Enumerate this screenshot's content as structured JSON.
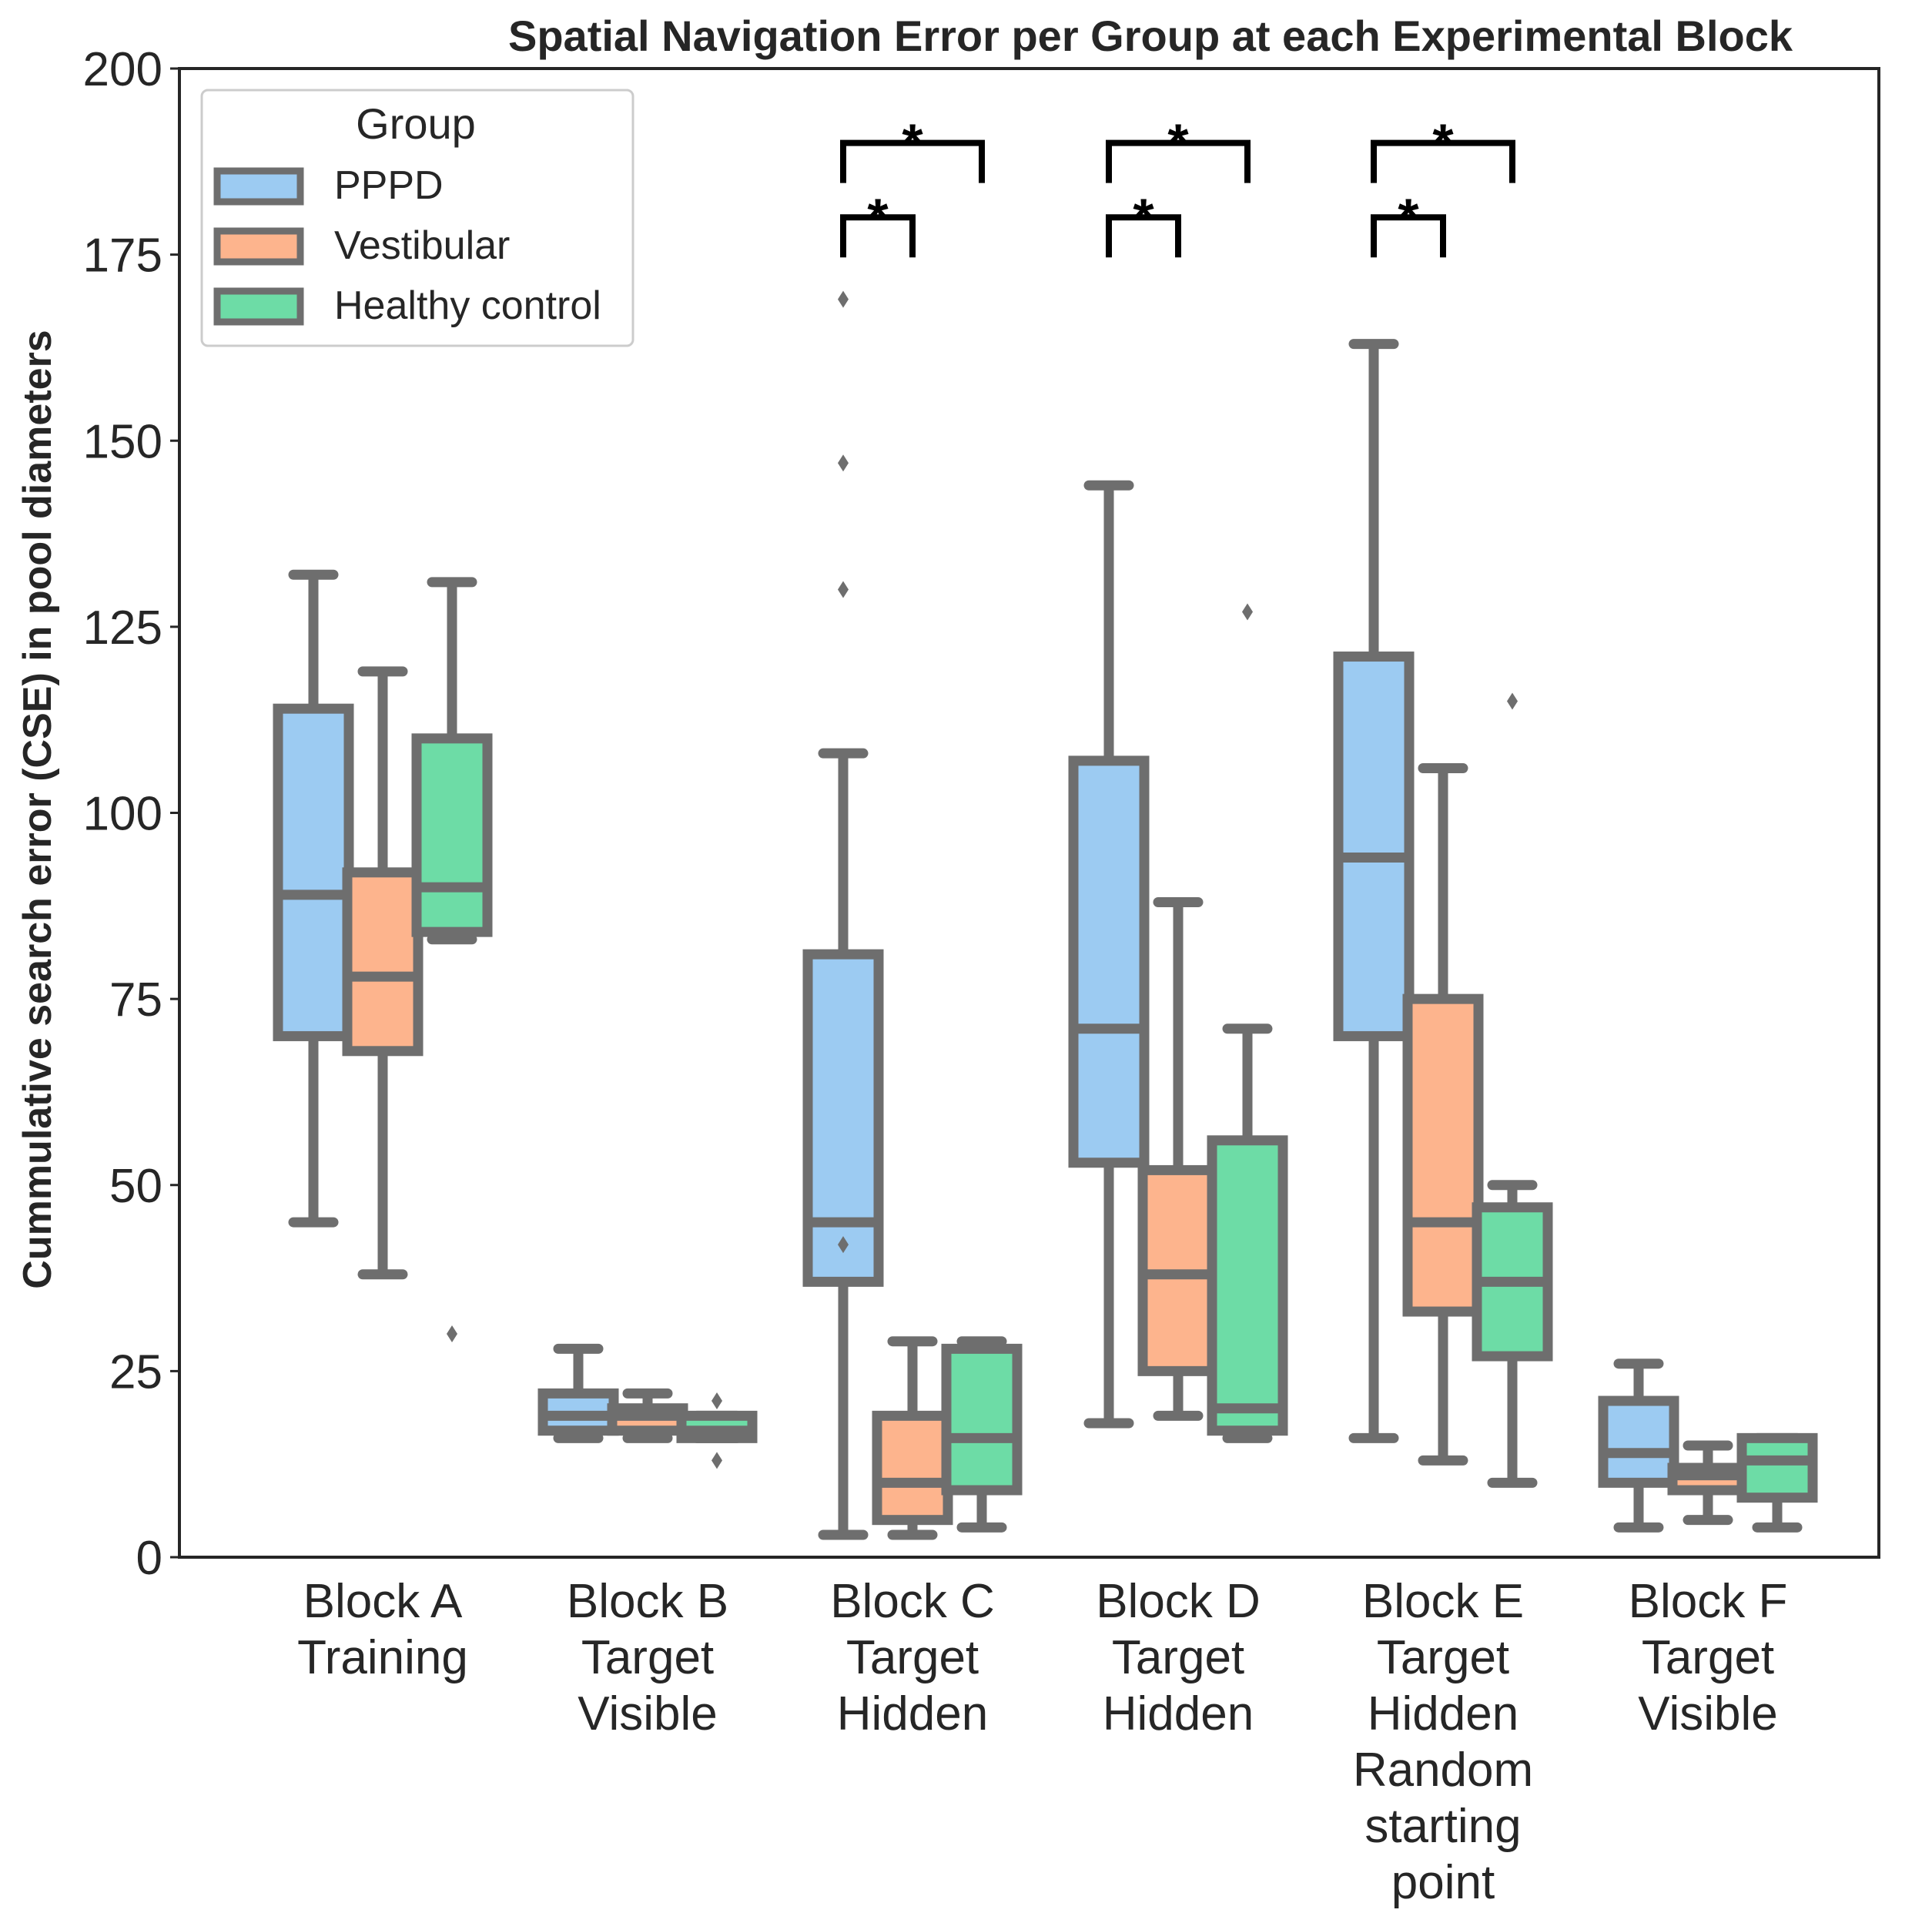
{
  "chart_data": {
    "type": "box",
    "title": "Spatial Navigation Error per Group at each Experimental Block",
    "xlabel": "",
    "ylabel": "Cummulative search error (CSE) in pool diameters",
    "ylim": [
      0,
      200
    ],
    "yticks": [
      0,
      25,
      50,
      75,
      100,
      125,
      150,
      175,
      200
    ],
    "grid": false,
    "legend": {
      "title": "Group",
      "position": "top-left"
    },
    "categories": [
      [
        "Block A",
        "Training"
      ],
      [
        "Block B",
        "Target",
        "Visible"
      ],
      [
        "Block C",
        "Target",
        "Hidden"
      ],
      [
        "Block D",
        "Target",
        "Hidden"
      ],
      [
        "Block E",
        "Target",
        "Hidden",
        "Random",
        "starting",
        "point"
      ],
      [
        "Block F",
        "Target",
        "Visible"
      ]
    ],
    "series": [
      {
        "name": "PPPD",
        "color": "#9ccbf2",
        "boxes": [
          {
            "whislo": 45,
            "q1": 70,
            "med": 89,
            "q3": 114,
            "whishi": 132,
            "fliers": []
          },
          {
            "whislo": 16,
            "q1": 17,
            "med": 19,
            "q3": 22,
            "whislo2": null,
            "whishi": 28,
            "fliers": []
          },
          {
            "whislo": 3,
            "q1": 37,
            "med": 45,
            "q3": 81,
            "whishi": 108,
            "fliers": [
              169,
              147,
              130,
              42
            ]
          },
          {
            "whislo": 18,
            "q1": 53,
            "med": 71,
            "q3": 107,
            "whishi": 144,
            "fliers": []
          },
          {
            "whislo": 16,
            "q1": 70,
            "med": 94,
            "q3": 121,
            "whishi": 163,
            "fliers": []
          },
          {
            "whislo": 4,
            "q1": 10,
            "med": 14,
            "q3": 21,
            "whishi": 26,
            "fliers": []
          }
        ]
      },
      {
        "name": "Vestibular",
        "color": "#fdb48d",
        "boxes": [
          {
            "whislo": 38,
            "q1": 68,
            "med": 78,
            "q3": 92,
            "whishi": 119,
            "fliers": []
          },
          {
            "whislo": 16,
            "q1": 17,
            "med": 19,
            "q3": 20,
            "whishi": 22,
            "fliers": []
          },
          {
            "whislo": 3,
            "q1": 5,
            "med": 10,
            "q3": 19,
            "whishi": 29,
            "fliers": []
          },
          {
            "whislo": 19,
            "q1": 25,
            "med": 38,
            "q3": 52,
            "whishi": 88,
            "fliers": []
          },
          {
            "whislo": 13,
            "q1": 33,
            "med": 45,
            "q3": 75,
            "whishi": 106,
            "fliers": []
          },
          {
            "whislo": 5,
            "q1": 9,
            "med": 11,
            "q3": 12,
            "whishi": 15,
            "fliers": []
          }
        ]
      },
      {
        "name": "Healthy control",
        "color": "#6ddca6",
        "boxes": [
          {
            "whislo": 83,
            "q1": 84,
            "med": 90,
            "q3": 110,
            "whishi": 131,
            "fliers": [
              30
            ]
          },
          {
            "whislo": 16,
            "q1": 16,
            "med": 17,
            "q3": 19,
            "whishi": 19,
            "fliers": [
              21,
              13
            ]
          },
          {
            "whislo": 4,
            "q1": 9,
            "med": 16,
            "q3": 28,
            "whishi": 29,
            "fliers": []
          },
          {
            "whislo": 16,
            "q1": 17,
            "med": 20,
            "q3": 56,
            "whishi": 71,
            "fliers": [
              127
            ]
          },
          {
            "whislo": 10,
            "q1": 27,
            "med": 37,
            "q3": 47,
            "whishi": 50,
            "fliers": [
              115
            ]
          },
          {
            "whislo": 4,
            "q1": 8,
            "med": 13,
            "q3": 16,
            "whishi": 16,
            "fliers": []
          }
        ]
      }
    ],
    "significance": [
      {
        "block": 2,
        "from": 0,
        "to": 2,
        "level": 190,
        "label": "*"
      },
      {
        "block": 2,
        "from": 0,
        "to": 1,
        "level": 180,
        "label": "*"
      },
      {
        "block": 3,
        "from": 0,
        "to": 2,
        "level": 190,
        "label": "*"
      },
      {
        "block": 3,
        "from": 0,
        "to": 1,
        "level": 180,
        "label": "*"
      },
      {
        "block": 4,
        "from": 0,
        "to": 2,
        "level": 190,
        "label": "*"
      },
      {
        "block": 4,
        "from": 0,
        "to": 1,
        "level": 180,
        "label": "*"
      }
    ],
    "line_color": "#6e6e6e"
  }
}
